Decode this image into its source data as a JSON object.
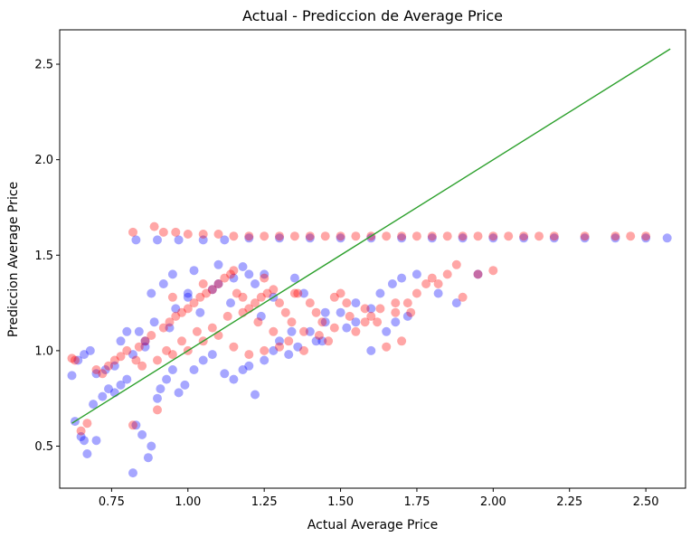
{
  "chart_data": {
    "type": "scatter",
    "title": "Actual - Prediccion de Average Price",
    "xlabel": "Actual Average Price",
    "ylabel": "Prediccion Average Price",
    "xlim": [
      0.58,
      2.63
    ],
    "ylim": [
      0.28,
      2.68
    ],
    "xticks": [
      0.75,
      1.0,
      1.25,
      1.5,
      1.75,
      2.0,
      2.25,
      2.5
    ],
    "xtick_labels": [
      "0.75",
      "1.00",
      "1.25",
      "1.50",
      "1.75",
      "2.00",
      "2.25",
      "2.50"
    ],
    "yticks": [
      0.5,
      1.0,
      1.5,
      2.0,
      2.5
    ],
    "ytick_labels": [
      "0.5",
      "1.0",
      "1.5",
      "2.0",
      "2.5"
    ],
    "grid": false,
    "legend": "none",
    "colors": {
      "series_a": "#0000ff",
      "series_b": "#ff0000",
      "line": "#2ca02c"
    },
    "line": {
      "x": [
        0.62,
        2.58
      ],
      "y": [
        0.62,
        2.58
      ]
    },
    "series": [
      {
        "x": [
          0.62,
          0.63,
          0.65,
          0.66,
          0.67,
          0.69,
          0.7,
          0.72,
          0.74,
          0.76,
          0.78,
          0.8,
          0.82,
          0.83,
          0.85,
          0.87,
          0.88,
          0.9,
          0.91,
          0.93,
          0.95,
          0.97,
          0.99,
          1.02,
          1.05,
          1.08,
          1.12,
          1.15,
          1.18,
          1.2,
          1.22,
          1.25,
          1.28,
          1.3,
          1.33,
          1.36,
          1.4,
          1.42,
          1.45,
          1.5,
          1.55,
          1.6,
          1.63,
          1.67,
          1.7,
          1.75,
          0.83,
          0.9,
          0.97,
          1.05,
          1.12,
          1.2,
          1.3,
          1.4,
          1.5,
          1.6,
          1.7,
          1.8,
          1.9,
          2.0,
          2.1,
          2.2,
          2.3,
          2.4,
          2.5,
          2.57,
          0.95,
          1.02,
          1.1,
          1.18,
          1.25,
          1.35,
          0.88,
          0.92,
          1.0,
          1.08,
          1.15,
          1.22,
          1.28,
          1.38,
          1.45,
          1.55,
          1.65,
          1.72,
          1.82,
          1.88,
          1.95,
          0.8,
          0.86,
          0.94,
          1.04,
          1.14,
          1.24,
          1.34,
          1.44,
          1.52,
          1.6,
          1.68,
          0.64,
          0.66,
          0.68,
          0.7,
          0.73,
          0.76,
          0.78,
          0.82,
          0.84,
          0.86,
          0.89,
          0.96,
          1.0,
          1.1,
          1.2
        ],
        "y": [
          0.87,
          0.63,
          0.55,
          0.53,
          0.46,
          0.72,
          0.53,
          0.76,
          0.8,
          0.78,
          0.82,
          0.85,
          0.36,
          0.61,
          0.56,
          0.44,
          0.5,
          0.75,
          0.8,
          0.85,
          0.9,
          0.78,
          0.82,
          0.9,
          0.95,
          0.98,
          0.88,
          0.85,
          0.9,
          0.92,
          0.77,
          0.95,
          1.0,
          1.05,
          0.98,
          1.02,
          1.1,
          1.05,
          1.15,
          1.2,
          1.25,
          1.22,
          1.3,
          1.35,
          1.38,
          1.4,
          1.58,
          1.58,
          1.58,
          1.58,
          1.58,
          1.59,
          1.59,
          1.59,
          1.59,
          1.59,
          1.59,
          1.59,
          1.59,
          1.59,
          1.59,
          1.59,
          1.59,
          1.59,
          1.59,
          1.59,
          1.4,
          1.42,
          1.45,
          1.44,
          1.4,
          1.38,
          1.3,
          1.35,
          1.3,
          1.32,
          1.38,
          1.35,
          1.28,
          1.3,
          1.2,
          1.15,
          1.1,
          1.18,
          1.3,
          1.25,
          1.4,
          1.1,
          1.05,
          1.12,
          1.2,
          1.25,
          1.18,
          1.1,
          1.05,
          1.12,
          1.0,
          1.15,
          0.95,
          0.98,
          1.0,
          0.88,
          0.9,
          0.92,
          1.05,
          0.98,
          1.1,
          1.02,
          1.15,
          1.22,
          1.28,
          1.35,
          1.4
        ]
      },
      {
        "x": [
          0.62,
          0.63,
          0.65,
          0.67,
          0.7,
          0.72,
          0.74,
          0.76,
          0.78,
          0.8,
          0.82,
          0.84,
          0.86,
          0.88,
          0.9,
          0.92,
          0.94,
          0.96,
          0.98,
          1.0,
          1.02,
          1.04,
          1.06,
          1.08,
          1.1,
          1.12,
          1.14,
          1.16,
          1.18,
          1.2,
          1.22,
          1.24,
          1.26,
          1.28,
          1.3,
          1.32,
          1.34,
          1.36,
          1.38,
          1.4,
          1.42,
          1.44,
          1.46,
          1.48,
          1.5,
          1.52,
          1.55,
          1.58,
          1.6,
          1.62,
          1.65,
          1.68,
          1.7,
          1.72,
          1.75,
          1.78,
          1.8,
          1.82,
          1.85,
          1.88,
          1.9,
          1.95,
          2.0,
          0.82,
          0.89,
          0.92,
          0.96,
          1.0,
          1.05,
          1.1,
          1.15,
          1.2,
          1.25,
          1.3,
          1.35,
          1.4,
          1.45,
          1.5,
          1.55,
          1.6,
          1.65,
          1.7,
          1.75,
          1.8,
          1.85,
          1.9,
          1.95,
          2.0,
          2.05,
          2.1,
          2.15,
          2.2,
          2.3,
          2.4,
          2.45,
          2.5,
          0.83,
          0.93,
          0.98,
          1.03,
          1.08,
          1.13,
          1.18,
          1.23,
          1.28,
          1.33,
          1.38,
          1.43,
          1.48,
          1.53,
          1.58,
          1.63,
          1.68,
          1.73,
          0.85,
          0.9,
          0.95,
          1.0,
          1.05,
          1.1,
          1.15,
          1.2,
          1.25,
          1.3,
          0.95,
          1.05,
          1.15,
          1.25,
          1.35
        ],
        "y": [
          0.96,
          0.95,
          0.58,
          0.62,
          0.9,
          0.88,
          0.92,
          0.95,
          0.97,
          1.0,
          0.61,
          1.02,
          1.05,
          1.08,
          0.69,
          1.12,
          1.15,
          1.18,
          1.2,
          1.22,
          1.25,
          1.28,
          1.3,
          1.32,
          1.35,
          1.38,
          1.4,
          1.3,
          1.28,
          1.22,
          1.25,
          1.28,
          1.3,
          1.32,
          1.25,
          1.2,
          1.15,
          1.3,
          1.1,
          1.25,
          1.2,
          1.15,
          1.05,
          1.28,
          1.3,
          1.25,
          1.1,
          1.22,
          1.18,
          1.15,
          1.02,
          1.2,
          1.05,
          1.25,
          1.3,
          1.35,
          1.38,
          1.35,
          1.4,
          1.45,
          1.28,
          1.4,
          1.42,
          1.62,
          1.65,
          1.62,
          1.62,
          1.61,
          1.61,
          1.61,
          1.6,
          1.6,
          1.6,
          1.6,
          1.6,
          1.6,
          1.6,
          1.6,
          1.6,
          1.6,
          1.6,
          1.6,
          1.6,
          1.6,
          1.6,
          1.6,
          1.6,
          1.6,
          1.6,
          1.6,
          1.6,
          1.6,
          1.6,
          1.6,
          1.6,
          1.6,
          0.95,
          1.0,
          1.05,
          1.1,
          1.12,
          1.18,
          1.2,
          1.15,
          1.1,
          1.05,
          1.0,
          1.08,
          1.12,
          1.18,
          1.15,
          1.22,
          1.25,
          1.2,
          0.92,
          0.95,
          0.98,
          1.0,
          1.05,
          1.08,
          1.02,
          0.98,
          1.0,
          1.02,
          1.28,
          1.35,
          1.42,
          1.38,
          1.3
        ]
      }
    ]
  }
}
